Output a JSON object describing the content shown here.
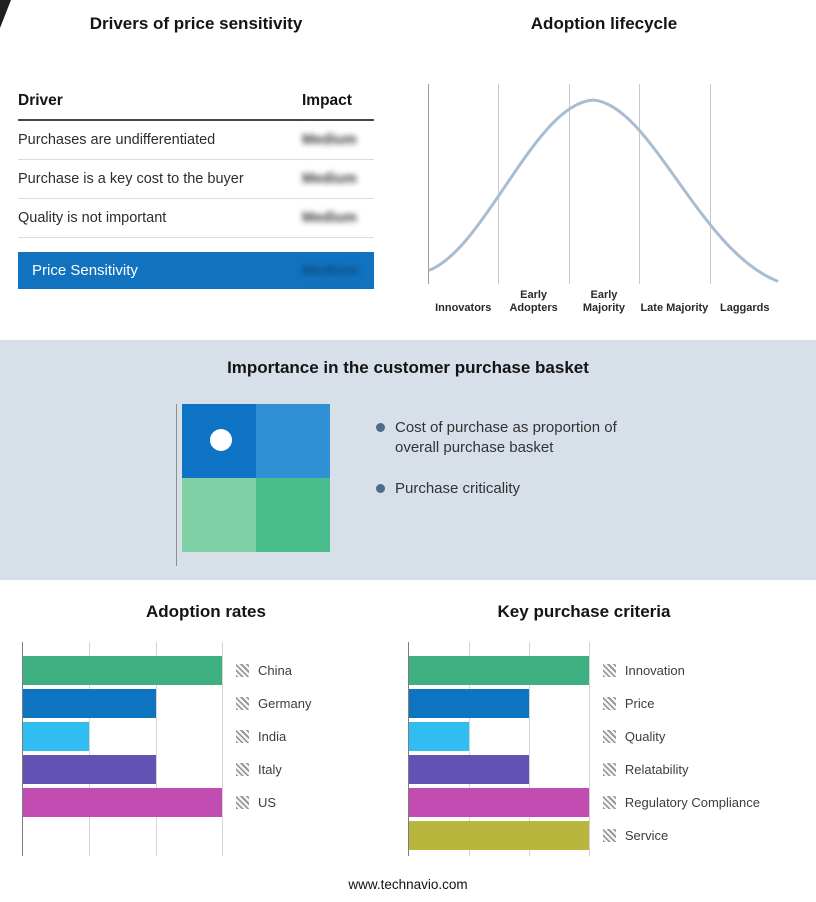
{
  "chart_data": [
    {
      "type": "table",
      "title": "Drivers of price sensitivity",
      "columns": [
        "Driver",
        "Impact"
      ],
      "rows": [
        [
          "Purchases are undifferentiated",
          "Medium"
        ],
        [
          "Purchase is a key cost to the buyer",
          "Medium"
        ],
        [
          "Quality is not important",
          "Medium"
        ]
      ],
      "highlight_row": [
        "Price Sensitivity",
        "Medium"
      ],
      "highlight_color": "#1173c0",
      "impact_values_blurred": true
    },
    {
      "type": "line",
      "title": "Adoption lifecycle",
      "categories": [
        "Innovators",
        "Early Adopters",
        "Early Majority",
        "Late Majority",
        "Laggards"
      ],
      "shape": "bell curve peaking at Early Majority",
      "line_color": "#a9bdd1",
      "grid": true
    },
    {
      "type": "bar",
      "title": "Adoption rates",
      "orientation": "horizontal",
      "categories": [
        "China",
        "Germany",
        "India",
        "Italy",
        "US"
      ],
      "values": [
        3,
        2,
        1,
        2,
        3
      ],
      "colors": [
        "#3eb081",
        "#0f74c0",
        "#2fbdf2",
        "#6252b4",
        "#c14cb2"
      ],
      "xlim": [
        0,
        3
      ],
      "grid": true,
      "legend_position": "right"
    },
    {
      "type": "bar",
      "title": "Key purchase criteria",
      "orientation": "horizontal",
      "categories": [
        "Innovation",
        "Price",
        "Quality",
        "Relatability",
        "Regulatory Compliance",
        "Service"
      ],
      "values": [
        3,
        2,
        1,
        2,
        3,
        3
      ],
      "colors": [
        "#3eb081",
        "#0f74c0",
        "#2fbdf2",
        "#6252b4",
        "#c14cb2",
        "#b9b63e"
      ],
      "xlim": [
        0,
        3
      ],
      "grid": true,
      "legend_position": "right"
    }
  ],
  "importance": {
    "title": "Importance in the customer purchase basket",
    "bullets": [
      "Cost of purchase as proportion of overall purchase basket",
      "Purchase criticality"
    ],
    "quadrant_colors": [
      "#0e73c4",
      "#3090d6",
      "#7fd0a5",
      "#4abd8c"
    ],
    "bullet_color": "#4a6d8c",
    "band_color": "#d7dfe9"
  },
  "footer": {
    "url": "www.technavio.com"
  }
}
